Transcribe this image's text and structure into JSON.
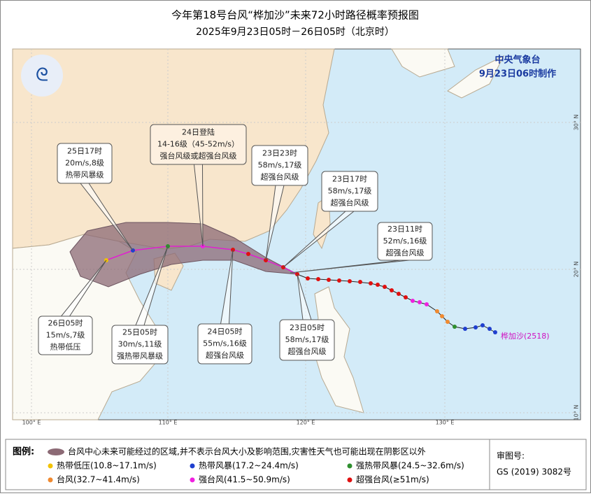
{
  "header": {
    "title": "今年第18号台风“桦加沙”未来72小时路径概率预报图",
    "subtitle": "2025年9月23日05时－26日05时（北京时）"
  },
  "agency": {
    "name": "中央气象台",
    "issued": "9月23日06时制作"
  },
  "grid_labels": {
    "lon": [
      "100° E",
      "110° E",
      "120° E",
      "130° E"
    ],
    "lat": [
      "10° N",
      "20° N",
      "30° N"
    ],
    "edge_lon": "10° N"
  },
  "storm_label": "桦加沙(2518)",
  "callouts": [
    {
      "lines": [
        "25日17时",
        "20m/s,8级",
        "热带风暴级"
      ]
    },
    {
      "lines": [
        "24日登陆",
        "14-16级（45-52m/s）",
        "强台风级或超强台风级"
      ]
    },
    {
      "lines": [
        "23日23时",
        "58m/s,17级",
        "超强台风级"
      ]
    },
    {
      "lines": [
        "23日17时",
        "58m/s,17级",
        "超强台风级"
      ]
    },
    {
      "lines": [
        "23日11时",
        "52m/s,16级",
        "超强台风级"
      ]
    },
    {
      "lines": [
        "26日05时",
        "15m/s,7级",
        "热带低压"
      ]
    },
    {
      "lines": [
        "25日05时",
        "30m/s,11级",
        "强热带风暴级"
      ]
    },
    {
      "lines": [
        "24日05时",
        "55m/s,16级",
        "超强台风级"
      ]
    },
    {
      "lines": [
        "23日05时",
        "58m/s,17级",
        "超强台风级"
      ]
    }
  ],
  "legend": {
    "title": "图例:",
    "cone": "台风中心未来可能经过的区域,并不表示台风大小及影响范围,灾害性天气也可能出现在阴影区以外",
    "items": [
      {
        "label": "热带低压(10.8~17.1m/s)",
        "color": "#f2c200"
      },
      {
        "label": "热带风暴(17.2~24.4m/s)",
        "color": "#1f3fcf"
      },
      {
        "label": "强热带风暴(24.5~32.6m/s)",
        "color": "#2f8f2f"
      },
      {
        "label": "台风(32.7~41.4m/s)",
        "color": "#f08a30"
      },
      {
        "label": "强台风(41.5~50.9m/s)",
        "color": "#f020e0"
      },
      {
        "label": "超强台风(≥51m/s)",
        "color": "#e01010"
      }
    ]
  },
  "approval": {
    "label": "审图号:",
    "number": "GS (2019) 3082号"
  }
}
